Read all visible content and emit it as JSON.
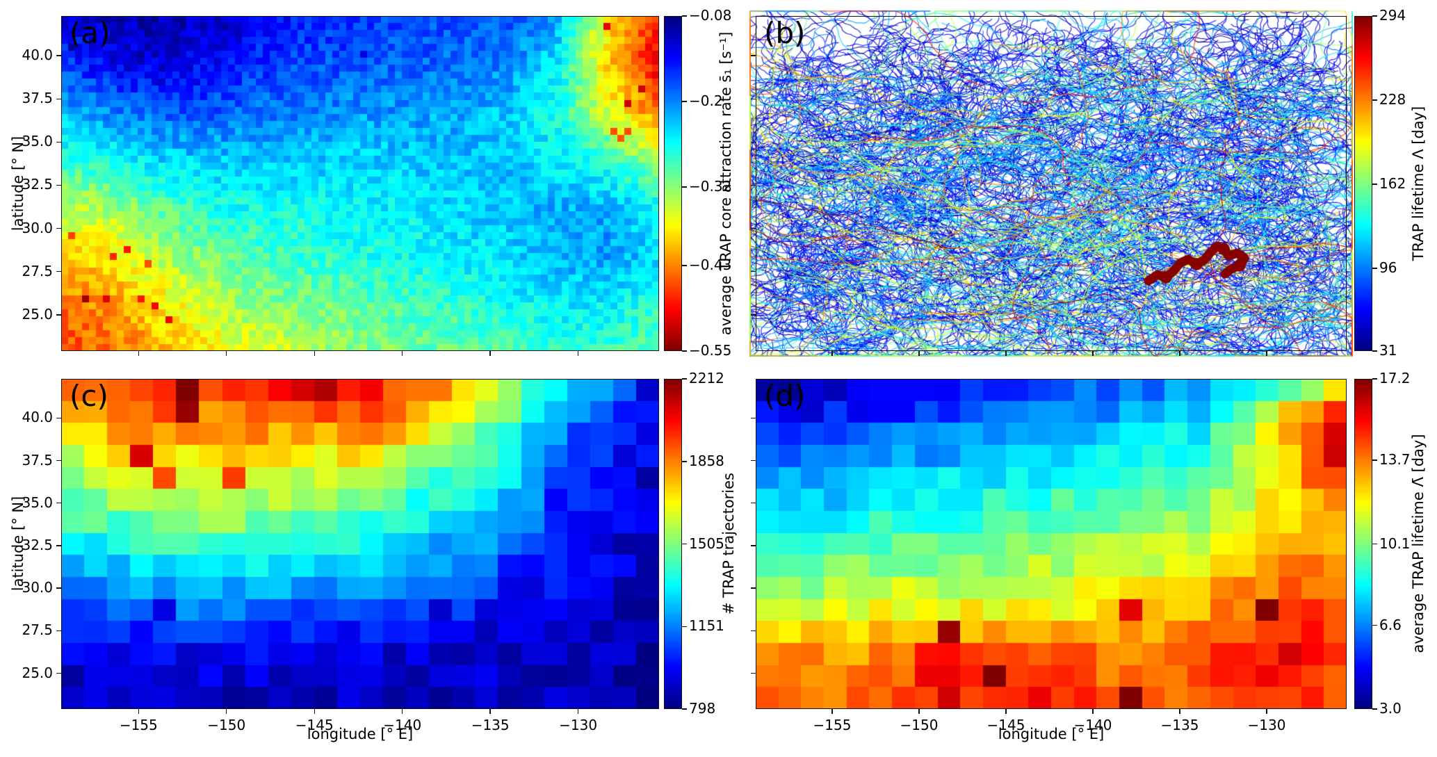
{
  "figure": {
    "xlabel": "longitude [° E]",
    "ylabel": "latitude [° N]",
    "x_tick_values": [
      -155,
      -150,
      -145,
      -140,
      -135,
      -130
    ],
    "x_tick_labels": [
      "−155",
      "−150",
      "−145",
      "−140",
      "−135",
      "−130"
    ],
    "y_tick_values": [
      40.0,
      37.5,
      35.0,
      32.5,
      30.0,
      27.5,
      25.0
    ],
    "y_tick_labels": [
      "40.0",
      "37.5",
      "35.0",
      "32.5",
      "30.0",
      "27.5",
      "25.0"
    ],
    "lon_range": [
      -159.4,
      -125.4
    ],
    "lat_range": [
      22.9,
      42.3
    ],
    "colormap": "jet",
    "background": "#ffffff"
  },
  "chart_data": [
    {
      "panel": "a",
      "label": "(a)",
      "type": "heatmap",
      "colorbar": {
        "label": "average TRAP core attraction rate s̄₁ [s⁻¹]",
        "tick_labels": [
          "−0.08",
          "−0.2",
          "−0.32",
          "−0.43",
          "−0.55"
        ],
        "tick_values": [
          -0.08,
          -0.2,
          -0.32,
          -0.43,
          -0.55
        ],
        "top_value": -0.08,
        "bottom_value": -0.55,
        "orientation": "vertical, dark blue at top (−0.08) to dark red at bottom (−0.55)"
      },
      "resolution_note": "native bins ≈0.4°; values below are coarse estimates read from colors",
      "grid_lon": [
        -159,
        -156.2,
        -153.4,
        -150.6,
        -147.8,
        -145,
        -142.2,
        -139.4,
        -136.6,
        -133.8,
        -131,
        -128.2,
        -125.4
      ],
      "grid_lat": [
        42,
        39.3,
        36.6,
        33.9,
        31.2,
        28.5,
        25.8,
        23.1
      ],
      "values": [
        [
          -0.13,
          -0.11,
          -0.1,
          -0.11,
          -0.13,
          -0.15,
          -0.16,
          -0.17,
          -0.17,
          -0.18,
          -0.22,
          -0.38,
          -0.48
        ],
        [
          -0.17,
          -0.13,
          -0.12,
          -0.14,
          -0.16,
          -0.17,
          -0.18,
          -0.18,
          -0.19,
          -0.2,
          -0.25,
          -0.4,
          -0.5
        ],
        [
          -0.22,
          -0.2,
          -0.18,
          -0.18,
          -0.19,
          -0.2,
          -0.21,
          -0.21,
          -0.22,
          -0.23,
          -0.27,
          -0.36,
          -0.44
        ],
        [
          -0.28,
          -0.26,
          -0.24,
          -0.23,
          -0.23,
          -0.23,
          -0.24,
          -0.23,
          -0.23,
          -0.23,
          -0.25,
          -0.28,
          -0.33
        ],
        [
          -0.34,
          -0.33,
          -0.3,
          -0.27,
          -0.26,
          -0.26,
          -0.25,
          -0.25,
          -0.24,
          -0.23,
          -0.22,
          -0.22,
          -0.26
        ],
        [
          -0.4,
          -0.38,
          -0.34,
          -0.31,
          -0.29,
          -0.28,
          -0.27,
          -0.26,
          -0.25,
          -0.24,
          -0.22,
          -0.21,
          -0.24
        ],
        [
          -0.44,
          -0.42,
          -0.38,
          -0.34,
          -0.32,
          -0.31,
          -0.3,
          -0.29,
          -0.28,
          -0.26,
          -0.25,
          -0.25,
          -0.28
        ],
        [
          -0.46,
          -0.44,
          -0.41,
          -0.38,
          -0.36,
          -0.34,
          -0.32,
          -0.31,
          -0.3,
          -0.29,
          -0.28,
          -0.28,
          -0.3
        ]
      ]
    },
    {
      "panel": "b",
      "label": "(b)",
      "type": "trajectories",
      "description": "Dense tangle of TRAP trajectories on white background, each colored by its lifetime (jet colormap). Vast majority are dark blue (short-lived, ~31–90 day); scattered cyan/green strands; few long yellow/orange/red strands. Sparser coverage near the top edge (above ~40.5° N).",
      "highlight": {
        "description": "Longest-lived TRAP highlighted as a thick dark-red trajectory",
        "approx_lon": [
          -135.5,
          -131.5
        ],
        "approx_lat": [
          28.0,
          29.3
        ]
      },
      "colorbar": {
        "label": "TRAP lifetime Λ [day]",
        "tick_labels": [
          "294",
          "228",
          "162",
          "96",
          "31"
        ],
        "tick_values": [
          294,
          228,
          162,
          96,
          31
        ],
        "top_value": 294,
        "bottom_value": 31,
        "orientation": "vertical, dark red at top (294) to dark blue at bottom (31)"
      }
    },
    {
      "panel": "c",
      "label": "(c)",
      "type": "heatmap",
      "colorbar": {
        "label": "# TRAP trajectories",
        "tick_labels": [
          "2212",
          "1858",
          "1505",
          "1151",
          "798"
        ],
        "tick_values": [
          2212,
          1858,
          1505,
          1151,
          798
        ],
        "top_value": 2212,
        "bottom_value": 798,
        "orientation": "vertical, dark red at top (2212) to dark blue at bottom (798)"
      },
      "resolution_note": "native bins ≈1.3°; values below are coarse estimates read from colors",
      "grid_lon": [
        -159,
        -156.2,
        -153.4,
        -150.6,
        -147.8,
        -145,
        -142.2,
        -139.4,
        -136.6,
        -133.8,
        -131,
        -128.2,
        -125.4
      ],
      "grid_lat": [
        42,
        39.3,
        36.6,
        33.9,
        31.2,
        28.5,
        25.8,
        23.1
      ],
      "values": [
        [
          1850,
          1950,
          2000,
          1950,
          2050,
          2200,
          2050,
          1950,
          1800,
          1550,
          1350,
          1150,
          1100
        ],
        [
          1700,
          1800,
          1850,
          1800,
          1850,
          1800,
          1900,
          1750,
          1600,
          1450,
          1150,
          1050,
          1000
        ],
        [
          1550,
          1600,
          1650,
          1700,
          1650,
          1600,
          1600,
          1500,
          1400,
          1300,
          1050,
          950,
          900
        ],
        [
          1400,
          1450,
          1500,
          1550,
          1500,
          1450,
          1400,
          1350,
          1250,
          1200,
          1000,
          950,
          900
        ],
        [
          1150,
          1250,
          1300,
          1300,
          1300,
          1250,
          1250,
          1200,
          1150,
          1050,
          1000,
          950,
          900
        ],
        [
          1000,
          1050,
          1100,
          1100,
          1100,
          1050,
          1050,
          1000,
          1000,
          950,
          900,
          880,
          880
        ],
        [
          900,
          900,
          920,
          950,
          920,
          900,
          900,
          880,
          900,
          880,
          870,
          860,
          850
        ],
        [
          880,
          870,
          880,
          900,
          870,
          860,
          880,
          860,
          880,
          900,
          870,
          850,
          860
        ]
      ]
    },
    {
      "panel": "d",
      "label": "(d)",
      "type": "heatmap",
      "colorbar": {
        "label": "average TRAP lifetime Λ̄ [day]",
        "tick_labels": [
          "17.2",
          "13.7",
          "10.1",
          "6.6",
          "3.0"
        ],
        "tick_values": [
          17.2,
          13.7,
          10.1,
          6.6,
          3.0
        ],
        "top_value": 17.2,
        "bottom_value": 3.0,
        "orientation": "vertical, dark red at top (17.2) to dark blue at bottom (3.0)"
      },
      "resolution_note": "native bins ≈1.3°; values below are coarse estimates read from colors",
      "grid_lon": [
        -159,
        -156.2,
        -153.4,
        -150.6,
        -147.8,
        -145,
        -142.2,
        -139.4,
        -136.6,
        -133.8,
        -131,
        -128.2,
        -125.4
      ],
      "grid_lat": [
        42,
        39.3,
        36.6,
        33.9,
        31.2,
        28.5,
        25.8,
        23.1
      ],
      "values": [
        [
          3.2,
          3.4,
          3.8,
          4.2,
          4.8,
          5.2,
          5.6,
          5.8,
          6.2,
          6.6,
          7.6,
          9.5,
          10.5
        ],
        [
          4.8,
          5.2,
          5.6,
          6.0,
          6.2,
          6.6,
          6.9,
          7.2,
          7.6,
          8.2,
          10.0,
          14.0,
          16.8
        ],
        [
          6.4,
          6.8,
          7.2,
          7.5,
          7.8,
          8.0,
          8.3,
          8.6,
          9.0,
          9.6,
          10.8,
          13.0,
          15.8
        ],
        [
          7.8,
          8.2,
          8.5,
          8.8,
          9.0,
          9.2,
          9.5,
          9.8,
          10.0,
          10.5,
          11.5,
          12.8,
          13.2
        ],
        [
          9.2,
          9.8,
          10.0,
          10.2,
          10.5,
          10.5,
          10.8,
          11.0,
          11.2,
          12.0,
          13.0,
          13.8,
          13.2
        ],
        [
          10.8,
          11.4,
          11.8,
          12.0,
          11.8,
          12.2,
          12.0,
          12.3,
          12.5,
          13.2,
          14.2,
          14.8,
          13.8
        ],
        [
          13.2,
          13.8,
          13.4,
          14.2,
          16.2,
          14.6,
          14.8,
          14.2,
          13.6,
          14.4,
          15.2,
          15.6,
          14.2
        ],
        [
          13.8,
          14.4,
          13.8,
          14.6,
          15.2,
          14.8,
          15.6,
          14.2,
          13.6,
          14.0,
          14.6,
          15.0,
          13.8
        ]
      ]
    }
  ]
}
